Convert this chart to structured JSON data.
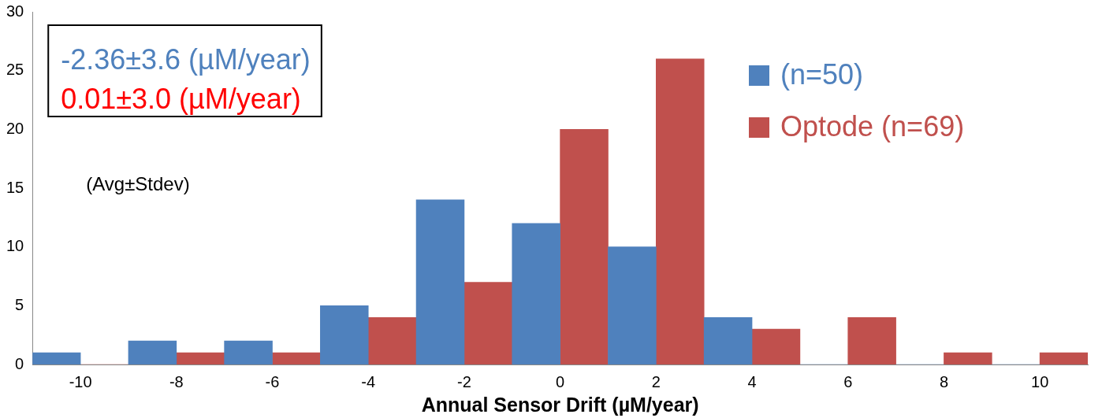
{
  "chart_data": {
    "type": "bar",
    "xlabel": "Annual Sensor Drift (µM/year)",
    "categories": [
      "-10",
      "-8",
      "-6",
      "-4",
      "-2",
      "0",
      "2",
      "4",
      "6",
      "8",
      "10"
    ],
    "series": [
      {
        "name": "(n=50)",
        "color": "#4f81bd",
        "values": [
          1,
          2,
          2,
          5,
          14,
          12,
          10,
          4,
          0,
          0,
          0
        ]
      },
      {
        "name": "Optode (n=69)",
        "color": "#c0504d",
        "values": [
          0,
          1,
          1,
          4,
          7,
          20,
          26,
          3,
          4,
          1,
          1
        ]
      }
    ],
    "ylim": [
      0,
      30
    ],
    "yticks": [
      0,
      5,
      10,
      15,
      20,
      25,
      30
    ],
    "grid": false,
    "legend": "top right",
    "annotations": [
      "-2.36±3.6 (µM/year)",
      "0.01±3.0 (µM/year)",
      "(Avg±Stdev)"
    ]
  }
}
